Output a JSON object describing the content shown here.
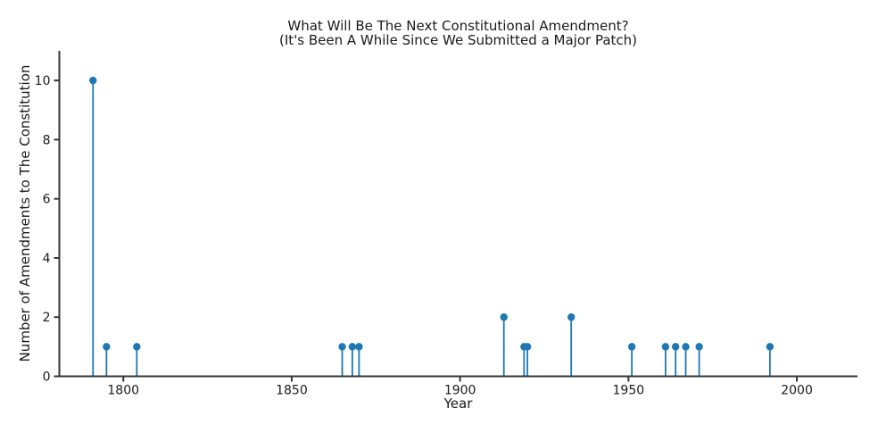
{
  "chart_data": {
    "type": "stem",
    "title": "What Will Be The Next Constitutional Amendment?",
    "subtitle": "(It's Been A While Since We Submitted a Major Patch)",
    "xlabel": "Year",
    "ylabel": "Number of Amendments to The Constitution",
    "x": [
      1791,
      1795,
      1804,
      1865,
      1868,
      1870,
      1913,
      1919,
      1920,
      1933,
      1951,
      1961,
      1964,
      1967,
      1971,
      1992
    ],
    "values": [
      10,
      1,
      1,
      1,
      1,
      1,
      2,
      1,
      1,
      2,
      1,
      1,
      1,
      1,
      1,
      1
    ],
    "xlim": [
      1781,
      2018
    ],
    "ylim": [
      0,
      11
    ],
    "xticks": [
      1800,
      1850,
      1900,
      1950,
      2000
    ],
    "yticks": [
      0,
      2,
      4,
      6,
      8,
      10
    ],
    "grid": false,
    "legend": "none",
    "spines": [
      "left",
      "bottom"
    ],
    "colors": {
      "stem": "#1f77b4",
      "marker": "#1f77b4",
      "axis": "#363636",
      "text": "#1a1a1a",
      "background": "#ffffff"
    }
  }
}
